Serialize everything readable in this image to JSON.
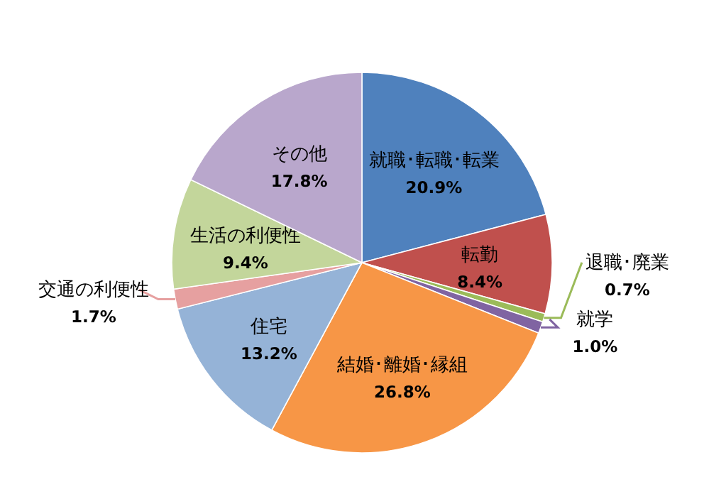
{
  "chart_data": {
    "type": "pie",
    "categories": [
      "就職･転職･転業",
      "転勤",
      "退職･廃業",
      "就学",
      "結婚･離婚･縁組",
      "住宅",
      "交通の利便性",
      "生活の利便性",
      "その他"
    ],
    "values": [
      20.9,
      8.4,
      0.7,
      1.0,
      26.8,
      13.2,
      1.7,
      9.4,
      17.8
    ],
    "colors": [
      "#4f81bd",
      "#c0504d",
      "#9bbb59",
      "#8064a2",
      "#f79646",
      "#95b3d7",
      "#e6a0a0",
      "#c3d69b",
      "#b9a7cc"
    ],
    "value_labels": [
      "20.9%",
      "8.4%",
      "0.7%",
      "1.0%",
      "26.8%",
      "13.2%",
      "1.7%",
      "9.4%",
      "17.8%"
    ]
  }
}
